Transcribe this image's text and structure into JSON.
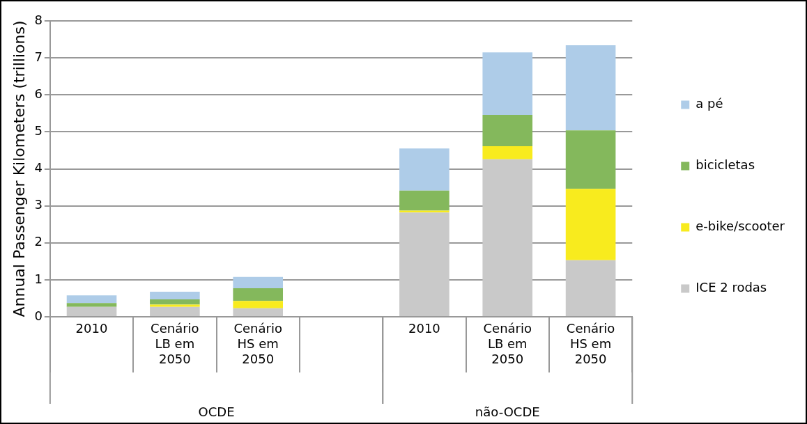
{
  "chart_data": {
    "type": "bar",
    "stacked": true,
    "ylabel": "Annual Passenger Kilometers (trillions)",
    "categories": [
      "2010",
      "Cenário LB em 2050",
      "Cenário HS em 2050",
      null,
      "2010",
      "Cenário LB em 2050",
      "Cenário HS em 2050"
    ],
    "series": [
      {
        "name": "ICE 2 rodas",
        "color": "#c9c9c9",
        "values": [
          0.27,
          0.27,
          0.23,
          null,
          2.82,
          4.26,
          1.53
        ]
      },
      {
        "name": "e-bike/scooter",
        "color": "#f8eb1e",
        "values": [
          0,
          0.06,
          0.2,
          null,
          0.05,
          0.35,
          1.93
        ]
      },
      {
        "name": "bicicletas",
        "color": "#84b85c",
        "values": [
          0.1,
          0.14,
          0.34,
          null,
          0.54,
          0.85,
          1.58
        ]
      },
      {
        "name": "a pé",
        "color": "#aecce8",
        "values": [
          0.21,
          0.21,
          0.31,
          null,
          1.14,
          1.69,
          2.3
        ]
      }
    ],
    "annotations": [
      "OCDE",
      "não-OCDE"
    ],
    "ylim": [
      0,
      8
    ],
    "yticks": [
      0,
      1,
      2,
      3,
      4,
      5,
      6,
      7,
      8
    ],
    "grid": "y",
    "legend": "right"
  }
}
